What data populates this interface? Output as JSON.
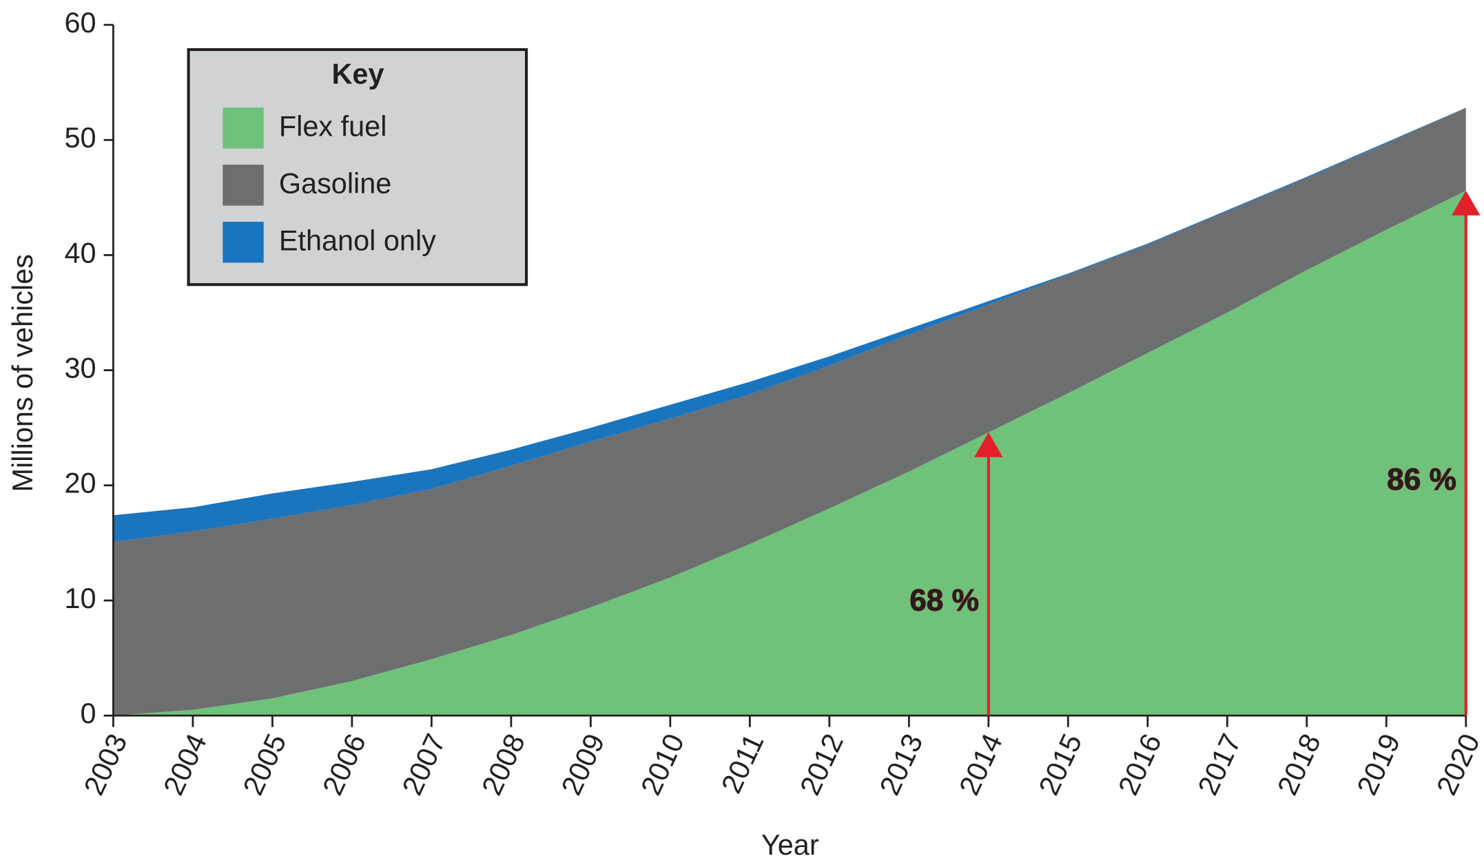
{
  "chart_data": {
    "type": "stacked_area",
    "x_label": "Year",
    "y_label": "Millions of vehicles",
    "x": [
      2003,
      2004,
      2005,
      2006,
      2007,
      2008,
      2009,
      2010,
      2011,
      2012,
      2013,
      2014,
      2015,
      2016,
      2017,
      2018,
      2019,
      2020
    ],
    "xlim": [
      2003,
      2020
    ],
    "xticks": [
      2003,
      2004,
      2005,
      2006,
      2007,
      2008,
      2009,
      2010,
      2011,
      2012,
      2013,
      2014,
      2015,
      2016,
      2017,
      2018,
      2019,
      2020
    ],
    "ylim": [
      0,
      60
    ],
    "yticks": [
      0,
      10,
      20,
      30,
      40,
      50,
      60
    ],
    "legend_title": "Key",
    "legend_position": "upper-left",
    "series": [
      {
        "name": "Flex fuel",
        "color": "#70c17a",
        "values": [
          0,
          0.5,
          1.5,
          3.0,
          4.9,
          7.0,
          9.4,
          12.0,
          14.9,
          18.0,
          21.2,
          24.6,
          28.0,
          31.5,
          35.0,
          38.7,
          42.2,
          45.6
        ]
      },
      {
        "name": "Gasoline",
        "color": "#6d6e70",
        "values": [
          15.1,
          15.5,
          15.6,
          15.3,
          14.8,
          14.7,
          14.4,
          13.8,
          13.0,
          12.4,
          11.9,
          11.1,
          10.3,
          9.4,
          8.8,
          8.0,
          7.5,
          7.2
        ]
      },
      {
        "name": "Ethanol only",
        "color": "#1a75bf",
        "values": [
          2.3,
          2.1,
          2.2,
          2.0,
          1.7,
          1.4,
          1.2,
          1.2,
          1.1,
          0.8,
          0.5,
          0.3,
          0.1,
          0.1,
          0.1,
          0.1,
          0.1,
          0
        ]
      }
    ],
    "annotations": [
      {
        "text": "68 %",
        "x": 2014,
        "y": 24.6,
        "color": "#e3202a"
      },
      {
        "text": "86 %",
        "x": 2020,
        "y": 45.6,
        "color": "#e3202a"
      }
    ]
  }
}
